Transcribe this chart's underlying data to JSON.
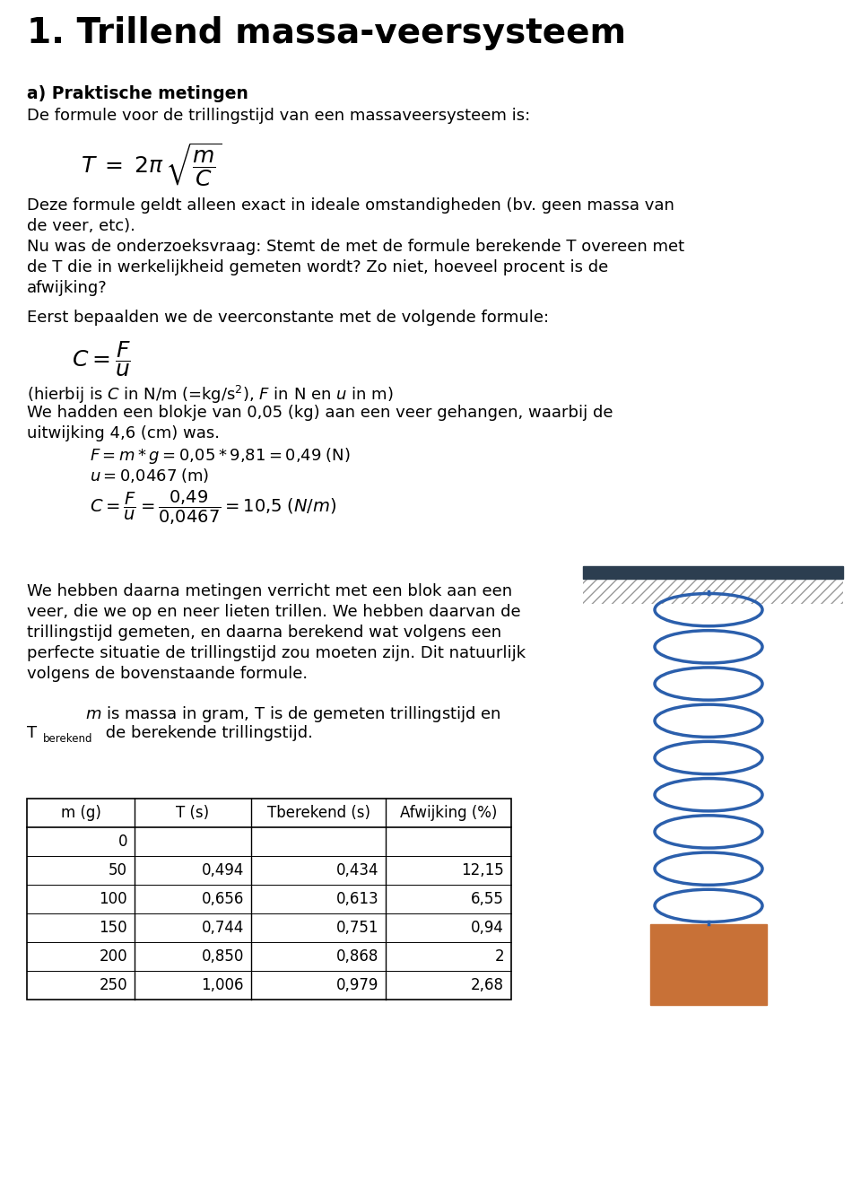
{
  "title": "1. Trillend massa-veersysteem",
  "bg_color": "#ffffff",
  "text_color": "#000000",
  "spring_color": "#2b5fac",
  "ceiling_bar_color": "#2c3e50",
  "block_color": "#c87137",
  "table_headers": [
    "m (g)",
    "T (s)",
    "Tberekend (s)",
    "Afwijking (%)"
  ],
  "table_data": [
    [
      "0",
      "",
      "",
      ""
    ],
    [
      "50",
      "0,494",
      "0,434",
      "12,15"
    ],
    [
      "100",
      "0,656",
      "0,613",
      "6,55"
    ],
    [
      "150",
      "0,744",
      "0,751",
      "0,94"
    ],
    [
      "200",
      "0,850",
      "0,868",
      "2"
    ],
    [
      "250",
      "1,006",
      "0,979",
      "2,68"
    ]
  ]
}
